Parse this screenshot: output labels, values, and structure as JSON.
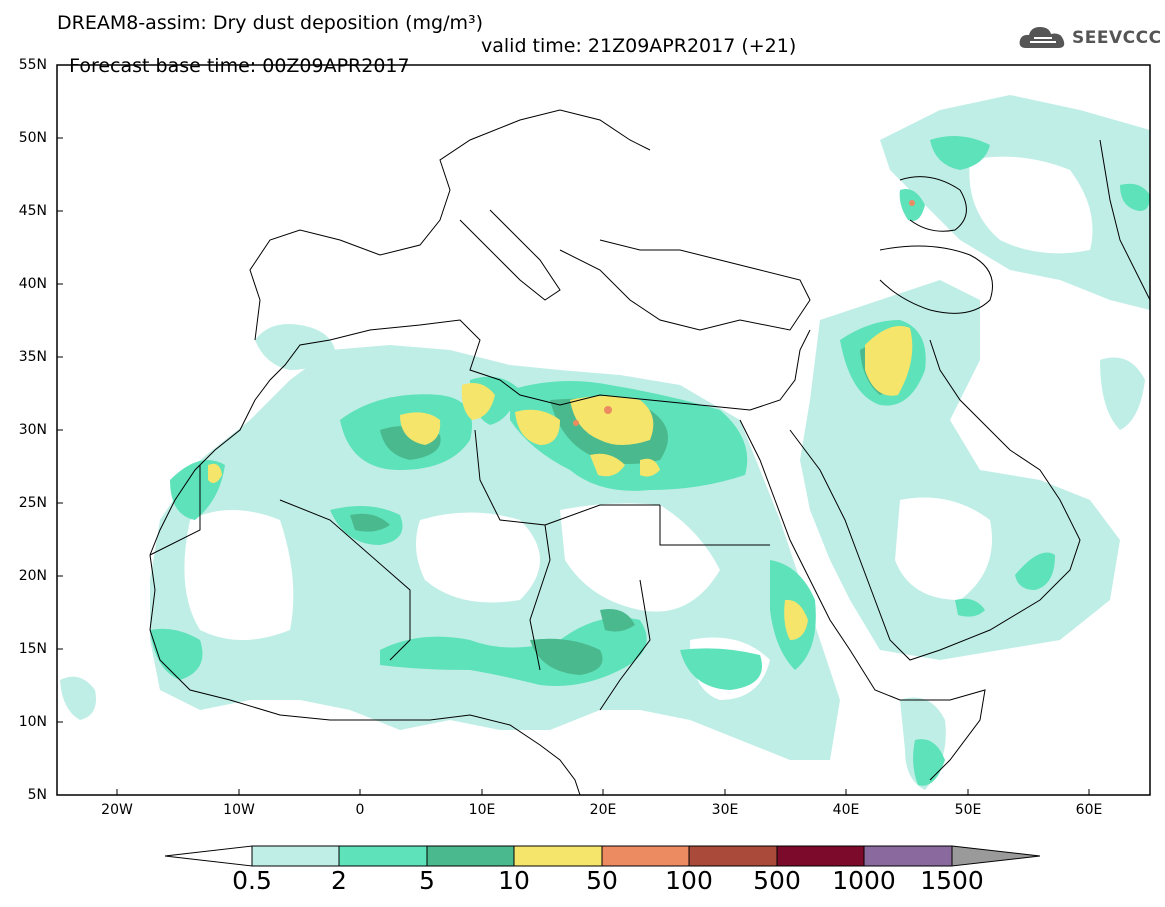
{
  "title": {
    "line1": "DREAM8-assim: Dry dust deposition (mg/m³)",
    "line2_base": "Forecast base time: 00Z09APR2017",
    "line2_valid": "valid time: 21Z09APR2017 (+21)"
  },
  "logo": {
    "text": "SEEVCCC",
    "icon": "cloud-icon"
  },
  "map": {
    "projection": "lat-lon",
    "lon_range": [
      -25,
      65
    ],
    "lat_range": [
      5,
      55
    ],
    "lat_labels": [
      "55N",
      "50N",
      "45N",
      "40N",
      "35N",
      "30N",
      "25N",
      "20N",
      "15N",
      "10N",
      "5N"
    ],
    "lon_labels": [
      "20W",
      "10W",
      "0",
      "10E",
      "20E",
      "30E",
      "40E",
      "50E",
      "60E"
    ]
  },
  "colorbar": {
    "labels": [
      "0.5",
      "2",
      "5",
      "10",
      "50",
      "100",
      "500",
      "1000",
      "1500"
    ],
    "colors": [
      "#bfeee6",
      "#5ee2ba",
      "#4bb98e",
      "#f5e56b",
      "#ec8b62",
      "#a94a3a",
      "#7c0a2a",
      "#8a6a9e",
      "#9a9a9a"
    ]
  }
}
